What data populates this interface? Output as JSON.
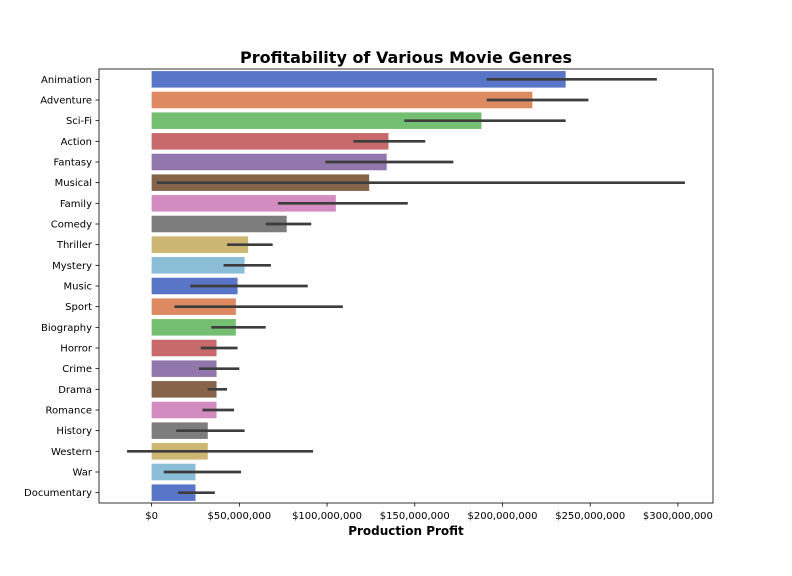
{
  "chart_data": {
    "type": "bar",
    "orientation": "horizontal",
    "title": "Profitability of Various Movie Genres",
    "xlabel": "Production Profit",
    "ylabel": "",
    "xlim": [
      -30000000,
      320000000
    ],
    "grid": false,
    "legend": "none",
    "x_ticks": [
      {
        "value": 0,
        "label": "$0"
      },
      {
        "value": 50000000,
        "label": "$50,000,000"
      },
      {
        "value": 100000000,
        "label": "$100,000,000"
      },
      {
        "value": 150000000,
        "label": "$150,000,000"
      },
      {
        "value": 200000000,
        "label": "$200,000,000"
      },
      {
        "value": 250000000,
        "label": "$250,000,000"
      },
      {
        "value": 300000000,
        "label": "$300,000,000"
      }
    ],
    "categories": [
      "Animation",
      "Adventure",
      "Sci-Fi",
      "Action",
      "Fantasy",
      "Musical",
      "Family",
      "Comedy",
      "Thriller",
      "Mystery",
      "Music",
      "Sport",
      "Biography",
      "Horror",
      "Crime",
      "Drama",
      "Romance",
      "History",
      "Western",
      "War",
      "Documentary"
    ],
    "values": [
      236000000,
      217000000,
      188000000,
      135000000,
      134000000,
      124000000,
      105000000,
      77000000,
      55000000,
      53000000,
      49000000,
      48000000,
      48000000,
      37000000,
      37000000,
      37000000,
      37000000,
      32000000,
      32000000,
      25000000,
      25000000
    ],
    "ci_low": [
      191000000,
      191000000,
      144000000,
      115000000,
      99000000,
      3000000,
      72000000,
      65000000,
      43000000,
      41000000,
      22000000,
      13000000,
      34000000,
      28000000,
      27000000,
      32000000,
      29000000,
      14000000,
      -14000000,
      7000000,
      15000000
    ],
    "ci_high": [
      288000000,
      249000000,
      236000000,
      156000000,
      172000000,
      304000000,
      146000000,
      91000000,
      69000000,
      68000000,
      89000000,
      109000000,
      65000000,
      49000000,
      50000000,
      43000000,
      47000000,
      53000000,
      92000000,
      51000000,
      36000000
    ],
    "colors": [
      "#5975c7",
      "#dd8a62",
      "#74bf72",
      "#c86a6b",
      "#9277ac",
      "#86644a",
      "#d38cbf",
      "#7d7d7d",
      "#cdb671",
      "#8cbdd6"
    ]
  }
}
